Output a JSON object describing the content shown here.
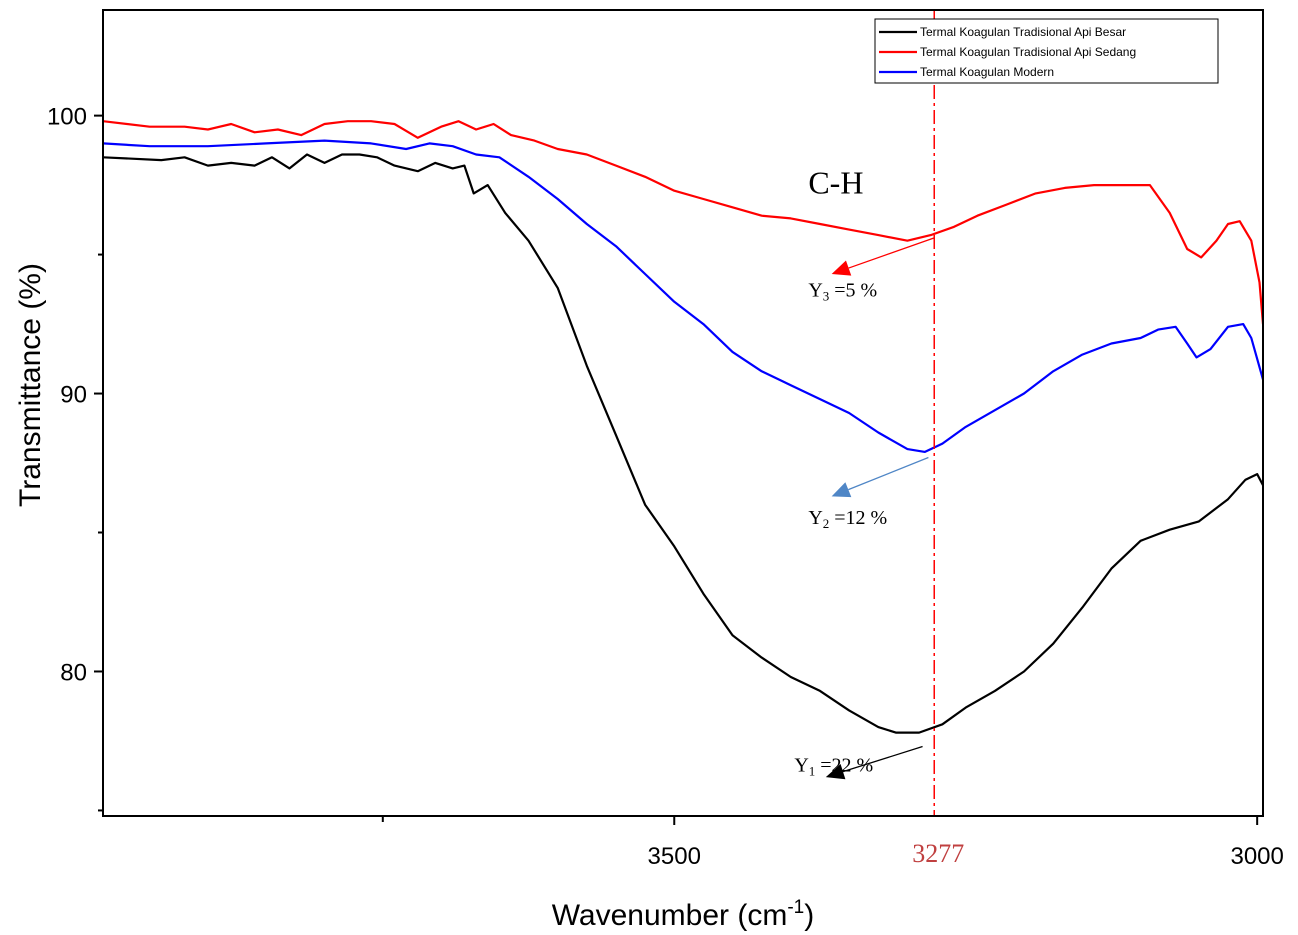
{
  "chart_data": {
    "type": "line",
    "xlabel": "Wavenumber (cm",
    "xlabel_sup": "-1",
    "xlabel_close": ")",
    "ylabel": "Transmittance (%)",
    "xlim": [
      3990,
      2995
    ],
    "ylim": [
      74.8,
      103.8
    ],
    "x_ticks": [
      3500,
      3000
    ],
    "x_minor_ticks": [
      3750
    ],
    "y_ticks": [
      80,
      90,
      100
    ],
    "grid": false,
    "legend_position": "top-right",
    "series": [
      {
        "name": "Termal Koagulan Tradisional Api Besar",
        "color": "#000000",
        "points": [
          [
            3990,
            98.5
          ],
          [
            3940,
            98.4
          ],
          [
            3920,
            98.5
          ],
          [
            3900,
            98.2
          ],
          [
            3880,
            98.3
          ],
          [
            3860,
            98.2
          ],
          [
            3845,
            98.5
          ],
          [
            3830,
            98.1
          ],
          [
            3815,
            98.6
          ],
          [
            3800,
            98.3
          ],
          [
            3785,
            98.6
          ],
          [
            3770,
            98.6
          ],
          [
            3755,
            98.5
          ],
          [
            3740,
            98.2
          ],
          [
            3720,
            98.0
          ],
          [
            3705,
            98.3
          ],
          [
            3690,
            98.1
          ],
          [
            3680,
            98.2
          ],
          [
            3672,
            97.2
          ],
          [
            3660,
            97.5
          ],
          [
            3645,
            96.5
          ],
          [
            3625,
            95.5
          ],
          [
            3600,
            93.8
          ],
          [
            3575,
            91.0
          ],
          [
            3550,
            88.5
          ],
          [
            3525,
            86.0
          ],
          [
            3500,
            84.5
          ],
          [
            3475,
            82.8
          ],
          [
            3450,
            81.3
          ],
          [
            3425,
            80.5
          ],
          [
            3400,
            79.8
          ],
          [
            3375,
            79.3
          ],
          [
            3350,
            78.6
          ],
          [
            3325,
            78.0
          ],
          [
            3310,
            77.8
          ],
          [
            3290,
            77.8
          ],
          [
            3270,
            78.1
          ],
          [
            3250,
            78.7
          ],
          [
            3225,
            79.3
          ],
          [
            3200,
            80.0
          ],
          [
            3175,
            81.0
          ],
          [
            3150,
            82.3
          ],
          [
            3125,
            83.7
          ],
          [
            3100,
            84.7
          ],
          [
            3075,
            85.1
          ],
          [
            3050,
            85.4
          ],
          [
            3025,
            86.2
          ],
          [
            3010,
            86.9
          ],
          [
            3000,
            87.1
          ],
          [
            2995,
            86.7
          ]
        ]
      },
      {
        "name": "Termal Koagulan Tradisional Api Sedang",
        "color": "#ff0000",
        "points": [
          [
            3990,
            99.8
          ],
          [
            3950,
            99.6
          ],
          [
            3920,
            99.6
          ],
          [
            3900,
            99.5
          ],
          [
            3880,
            99.7
          ],
          [
            3860,
            99.4
          ],
          [
            3840,
            99.5
          ],
          [
            3820,
            99.3
          ],
          [
            3800,
            99.7
          ],
          [
            3780,
            99.8
          ],
          [
            3760,
            99.8
          ],
          [
            3740,
            99.7
          ],
          [
            3720,
            99.2
          ],
          [
            3700,
            99.6
          ],
          [
            3685,
            99.8
          ],
          [
            3670,
            99.5
          ],
          [
            3655,
            99.7
          ],
          [
            3640,
            99.3
          ],
          [
            3620,
            99.1
          ],
          [
            3600,
            98.8
          ],
          [
            3575,
            98.6
          ],
          [
            3550,
            98.2
          ],
          [
            3525,
            97.8
          ],
          [
            3500,
            97.3
          ],
          [
            3475,
            97.0
          ],
          [
            3450,
            96.7
          ],
          [
            3425,
            96.4
          ],
          [
            3400,
            96.3
          ],
          [
            3375,
            96.1
          ],
          [
            3350,
            95.9
          ],
          [
            3325,
            95.7
          ],
          [
            3300,
            95.5
          ],
          [
            3280,
            95.7
          ],
          [
            3260,
            96.0
          ],
          [
            3240,
            96.4
          ],
          [
            3215,
            96.8
          ],
          [
            3190,
            97.2
          ],
          [
            3165,
            97.4
          ],
          [
            3140,
            97.5
          ],
          [
            3115,
            97.5
          ],
          [
            3092,
            97.5
          ],
          [
            3075,
            96.5
          ],
          [
            3060,
            95.2
          ],
          [
            3048,
            94.9
          ],
          [
            3035,
            95.5
          ],
          [
            3025,
            96.1
          ],
          [
            3015,
            96.2
          ],
          [
            3005,
            95.5
          ],
          [
            2998,
            94.0
          ],
          [
            2995,
            92.5
          ]
        ]
      },
      {
        "name": "Termal Koagulan Modern",
        "color": "#0000ff",
        "points": [
          [
            3990,
            99.0
          ],
          [
            3950,
            98.9
          ],
          [
            3900,
            98.9
          ],
          [
            3850,
            99.0
          ],
          [
            3800,
            99.1
          ],
          [
            3760,
            99.0
          ],
          [
            3730,
            98.8
          ],
          [
            3710,
            99.0
          ],
          [
            3690,
            98.9
          ],
          [
            3670,
            98.6
          ],
          [
            3650,
            98.5
          ],
          [
            3625,
            97.8
          ],
          [
            3600,
            97.0
          ],
          [
            3575,
            96.1
          ],
          [
            3550,
            95.3
          ],
          [
            3525,
            94.3
          ],
          [
            3500,
            93.3
          ],
          [
            3475,
            92.5
          ],
          [
            3450,
            91.5
          ],
          [
            3425,
            90.8
          ],
          [
            3400,
            90.3
          ],
          [
            3375,
            89.8
          ],
          [
            3350,
            89.3
          ],
          [
            3325,
            88.6
          ],
          [
            3300,
            88.0
          ],
          [
            3285,
            87.9
          ],
          [
            3270,
            88.2
          ],
          [
            3250,
            88.8
          ],
          [
            3225,
            89.4
          ],
          [
            3200,
            90.0
          ],
          [
            3175,
            90.8
          ],
          [
            3150,
            91.4
          ],
          [
            3125,
            91.8
          ],
          [
            3100,
            92.0
          ],
          [
            3085,
            92.3
          ],
          [
            3070,
            92.4
          ],
          [
            3060,
            91.8
          ],
          [
            3052,
            91.3
          ],
          [
            3040,
            91.6
          ],
          [
            3025,
            92.4
          ],
          [
            3012,
            92.5
          ],
          [
            3005,
            92.0
          ],
          [
            2995,
            90.5
          ]
        ]
      }
    ],
    "markers": [
      {
        "x": 3277,
        "label": "3277",
        "color": "#ff0000",
        "label_color": "#c04040"
      }
    ],
    "annotations": [
      {
        "text": "C-H",
        "x": 3385,
        "y": 97.2,
        "size": "big"
      },
      {
        "base": "Y",
        "sub": "3",
        "rest": " =5 %",
        "x": 3385,
        "y": 93.5,
        "arrow_from": [
          3277,
          95.6
        ],
        "arrow_to": [
          3365,
          94.3
        ],
        "arrow_color": "#ff0000",
        "head_color": "#ff0000"
      },
      {
        "base": "Y",
        "sub": "2",
        "rest": " =12 %",
        "x": 3385,
        "y": 85.3,
        "arrow_from": [
          3282,
          87.7
        ],
        "arrow_to": [
          3365,
          86.3
        ],
        "arrow_color": "#4f86c6",
        "head_color": "#4f86c6"
      },
      {
        "base": "Y",
        "sub": "1",
        "rest": " =22 %",
        "x": 3397,
        "y": 76.4,
        "arrow_from": [
          3287,
          77.3
        ],
        "arrow_to": [
          3370,
          76.2
        ],
        "arrow_color": "#000000",
        "head_color": "#000000"
      }
    ]
  }
}
